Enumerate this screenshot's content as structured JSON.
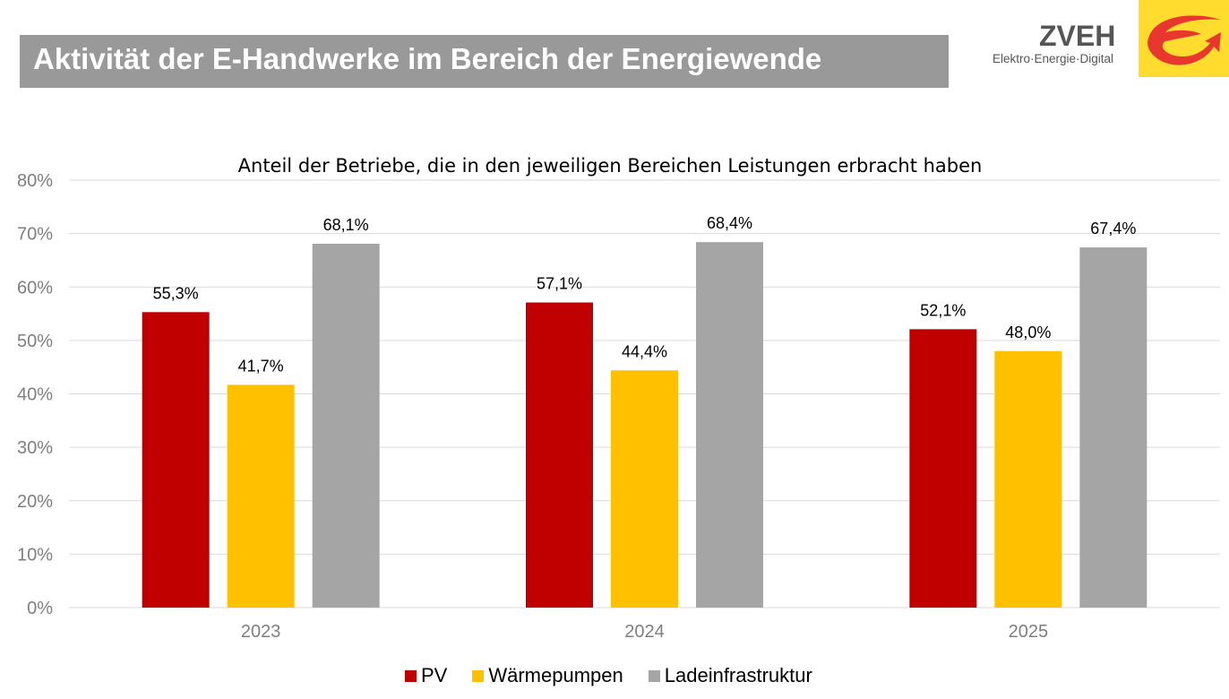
{
  "header": {
    "title": "Aktivität der E-Handwerke im Bereich der Energiewende",
    "title_bar_color": "#999999"
  },
  "logo": {
    "name": "ZVEH",
    "tagline": "Elektro·Energie·Digital",
    "icon": "e-arrow-logo-icon",
    "box_color": "#ffdc2e",
    "mark_color": "#e8372e"
  },
  "chart_data": {
    "type": "bar",
    "title": "Anteil der Betriebe, die in den jeweiligen Bereichen Leistungen erbracht haben",
    "xlabel": "",
    "ylabel": "",
    "categories": [
      "2023",
      "2024",
      "2025"
    ],
    "series": [
      {
        "name": "PV",
        "color": "#c00000",
        "values": [
          55.3,
          57.1,
          52.1
        ],
        "labels": [
          "55,3%",
          "57,1%",
          "52,1%"
        ]
      },
      {
        "name": "Wärmepumpen",
        "color": "#ffc000",
        "values": [
          41.7,
          44.4,
          48.0
        ],
        "labels": [
          "41,7%",
          "44,4%",
          "48,0%"
        ]
      },
      {
        "name": "Ladeinfrastruktur",
        "color": "#a5a5a5",
        "values": [
          68.1,
          68.4,
          67.4
        ],
        "labels": [
          "68,1%",
          "68,4%",
          "67,4%"
        ]
      }
    ],
    "ylim": [
      0,
      80
    ],
    "yticks": [
      0,
      10,
      20,
      30,
      40,
      50,
      60,
      70,
      80
    ],
    "ytick_labels": [
      "0%",
      "10%",
      "20%",
      "30%",
      "40%",
      "50%",
      "60%",
      "70%",
      "80%"
    ],
    "grid": true,
    "legend_position": "bottom"
  }
}
